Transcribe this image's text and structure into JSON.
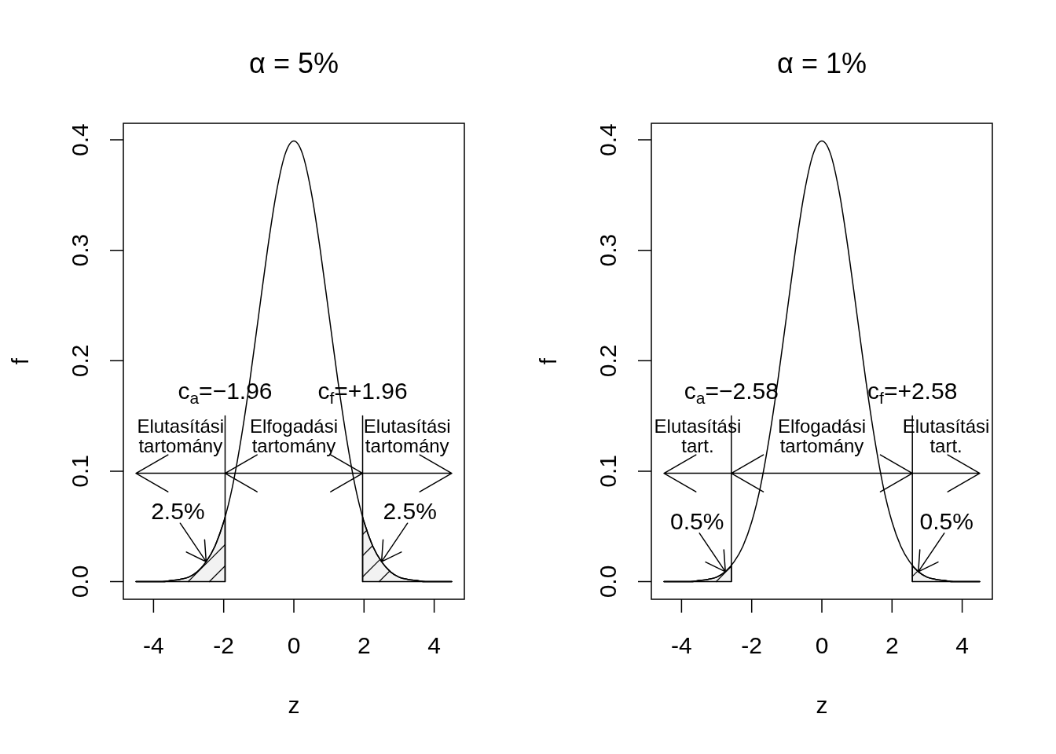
{
  "chart_data": [
    {
      "type": "line",
      "title": "α = 5%",
      "xlabel": "z",
      "ylabel": "f",
      "xlim": [
        -4.86,
        4.86
      ],
      "ylim": [
        -0.016,
        0.415
      ],
      "xticks": [
        -4,
        -2,
        0,
        2,
        4
      ],
      "yticks": [
        {
          "value": 0,
          "label": "0.0"
        },
        0.1,
        0.2,
        0.3,
        0.4
      ],
      "marker": "none",
      "series": [
        {
          "color": "#000000",
          "x": [
            -4.5,
            -4.25,
            -4,
            -3.75,
            -3.5,
            -3.25,
            -3,
            -2.75,
            -2.5,
            -2.25,
            -2,
            -1.75,
            -1.5,
            -1.25,
            -1,
            -0.75,
            -0.5,
            -0.25,
            0,
            0.25,
            0.5,
            0.75,
            1,
            1.25,
            1.5,
            1.75,
            2,
            2.25,
            2.5,
            2.75,
            3,
            3.25,
            3.5,
            3.75,
            4,
            4.25,
            4.5
          ],
          "values": [
            0,
            0,
            0,
            0,
            0.001,
            0.002,
            0.004,
            0.009,
            0.018,
            0.032,
            0.054,
            0.086,
            0.13,
            0.183,
            0.242,
            0.301,
            0.352,
            0.387,
            0.399,
            0.387,
            0.352,
            0.301,
            0.242,
            0.183,
            0.13,
            0.086,
            0.054,
            0.032,
            0.018,
            0.009,
            0.004,
            0.002,
            0.001,
            0,
            0,
            0,
            0
          ]
        },
        {
          "type": "area",
          "color": "#000000",
          "x": [
            -4.5,
            -4.25,
            -4,
            -3.75,
            -3.5,
            -3.25,
            -3,
            -2.75,
            -2.5,
            -2.25,
            -2,
            -1.96
          ],
          "values": [
            0,
            0,
            0,
            0,
            0.001,
            0.002,
            0.004,
            0.009,
            0.018,
            0.032,
            0.054,
            0.058
          ]
        },
        {
          "type": "area",
          "color": "#000000",
          "x": [
            1.96,
            2,
            2.25,
            2.5,
            2.75,
            3,
            3.25,
            3.5,
            3.75,
            4,
            4.25,
            4.5
          ],
          "values": [
            0.058,
            0.054,
            0.032,
            0.018,
            0.009,
            0.004,
            0.002,
            0.001,
            0,
            0,
            0,
            0
          ]
        },
        {
          "color": "#000000",
          "x": [
            -1.96,
            -1.96
          ],
          "values": [
            0,
            0.15
          ]
        },
        {
          "color": "#000000",
          "x": [
            1.96,
            1.96
          ],
          "values": [
            0,
            0.15
          ]
        }
      ],
      "annotations": [
        "c$_{a}$=−1.96",
        "c$_{f}$=+1.96",
        "Elutasítási tartomány",
        "Elfogadási tartomány",
        "Elutasítási tartomány",
        {
          "text": "2.5%",
          "x": -2.5,
          "y": 0.018
        },
        {
          "text": "2.5%",
          "x": 2.5,
          "y": 0.018
        }
      ]
    },
    {
      "type": "line",
      "title": "α = 1%",
      "xlabel": "z",
      "ylabel": "f",
      "xlim": [
        -4.86,
        4.86
      ],
      "ylim": [
        -0.016,
        0.415
      ],
      "xticks": [
        -4,
        -2,
        0,
        2,
        4
      ],
      "yticks": [
        {
          "value": 0,
          "label": "0.0"
        },
        0.1,
        0.2,
        0.3,
        0.4
      ],
      "marker": "none",
      "series": [
        {
          "color": "#000000",
          "x": [
            -4.5,
            -4.25,
            -4,
            -3.75,
            -3.5,
            -3.25,
            -3,
            -2.75,
            -2.5,
            -2.25,
            -2,
            -1.75,
            -1.5,
            -1.25,
            -1,
            -0.75,
            -0.5,
            -0.25,
            0,
            0.25,
            0.5,
            0.75,
            1,
            1.25,
            1.5,
            1.75,
            2,
            2.25,
            2.5,
            2.75,
            3,
            3.25,
            3.5,
            3.75,
            4,
            4.25,
            4.5
          ],
          "values": [
            0,
            0,
            0,
            0,
            0.001,
            0.002,
            0.004,
            0.009,
            0.018,
            0.032,
            0.054,
            0.086,
            0.13,
            0.183,
            0.242,
            0.301,
            0.352,
            0.387,
            0.399,
            0.387,
            0.352,
            0.301,
            0.242,
            0.183,
            0.13,
            0.086,
            0.054,
            0.032,
            0.018,
            0.009,
            0.004,
            0.002,
            0.001,
            0,
            0,
            0,
            0
          ]
        },
        {
          "type": "area",
          "color": "#000000",
          "x": [
            -4.5,
            -4.25,
            -4,
            -3.75,
            -3.5,
            -3.25,
            -3,
            -2.75,
            -2.58
          ],
          "values": [
            0,
            0,
            0,
            0,
            0.001,
            0.002,
            0.004,
            0.009,
            0.014
          ]
        },
        {
          "type": "area",
          "color": "#000000",
          "x": [
            2.58,
            2.75,
            3,
            3.25,
            3.5,
            3.75,
            4,
            4.25,
            4.5
          ],
          "values": [
            0.014,
            0.009,
            0.004,
            0.002,
            0.001,
            0,
            0,
            0,
            0
          ]
        },
        {
          "color": "#000000",
          "x": [
            -2.58,
            -2.58
          ],
          "values": [
            0,
            0.15
          ]
        },
        {
          "color": "#000000",
          "x": [
            2.58,
            2.58
          ],
          "values": [
            0,
            0.15
          ]
        }
      ],
      "annotations": [
        "c$_{a}$=−2.58",
        "c$_{f}$=+2.58",
        "Elutasítási tart.",
        "Elfogadási tartomány",
        "Elutasítási tart.",
        {
          "text": "0.5%",
          "x": -2.75,
          "y": 0.009
        },
        {
          "text": "0.5%",
          "x": 2.75,
          "y": 0.009
        }
      ]
    }
  ]
}
